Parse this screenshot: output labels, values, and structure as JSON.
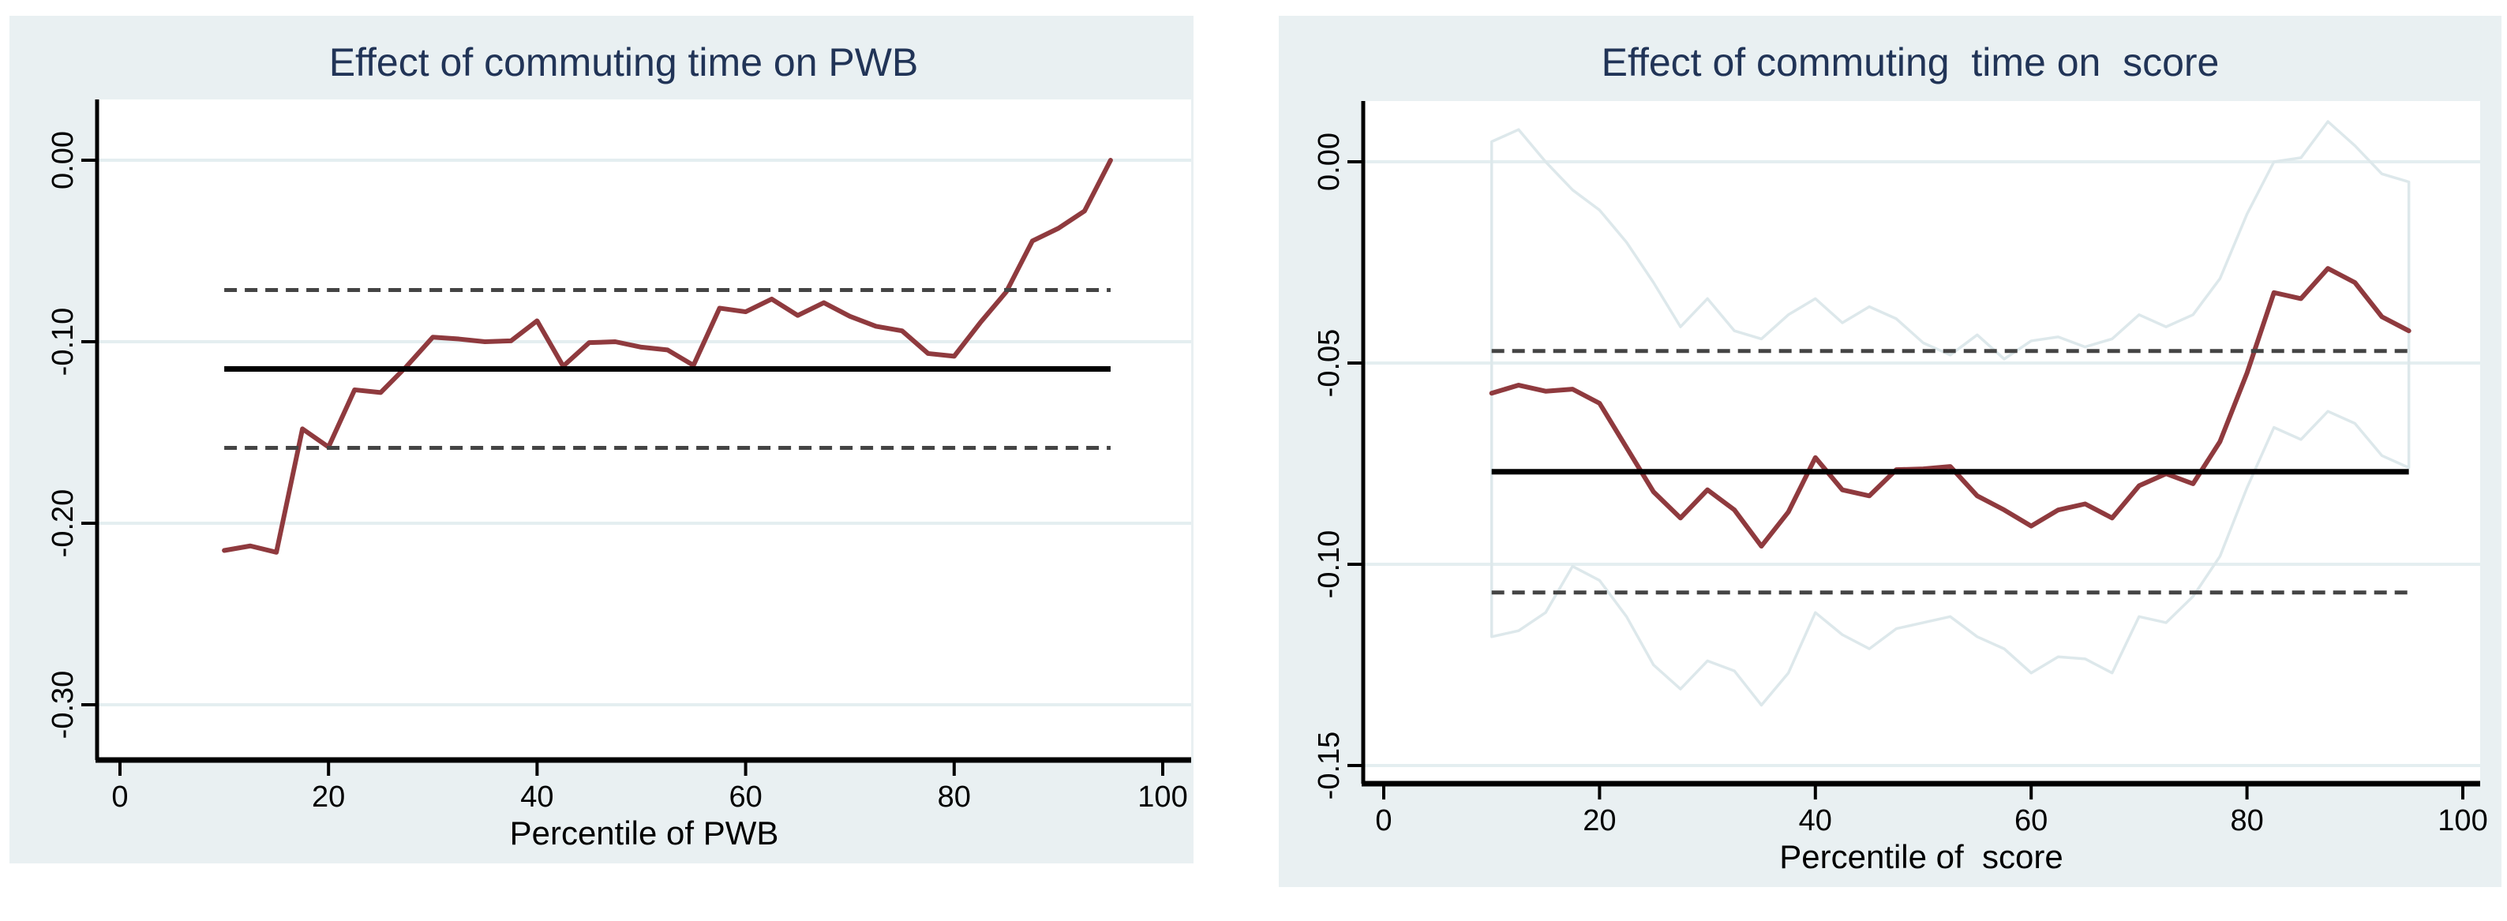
{
  "colors": {
    "panel_bg": "#e9f0f2",
    "plot_bg": "#ffffff",
    "grid": "#e4eef0",
    "title": "#213457",
    "effect_line": "#8f3a3e",
    "mean_line": "#000000",
    "mean_ci_dashed": "#444444",
    "quantile_ci_band": "#dde8eb",
    "axis": "#000000"
  },
  "chart_data": [
    {
      "type": "line",
      "title": "Effect of commuting time on PWB",
      "xlabel": "Percentile of PWB",
      "ylabel": "",
      "legend": "none",
      "grid": "on",
      "xlim": [
        0,
        100
      ],
      "ylim": [
        -0.33,
        0.034
      ],
      "xticks": [
        0,
        20,
        40,
        60,
        80,
        100
      ],
      "xtick_labels": [
        "0",
        "20",
        "40",
        "60",
        "80",
        "100"
      ],
      "ytick_values": [
        0,
        -0.1,
        -0.2,
        -0.3
      ],
      "ytick_labels": [
        "0.00",
        "-0.10",
        "-0.20",
        "-0.30"
      ],
      "x": [
        10,
        12.5,
        15,
        17.5,
        20,
        22.5,
        25,
        27.5,
        30,
        32.5,
        35,
        37.5,
        40,
        42.5,
        45,
        47.5,
        50,
        52.5,
        55,
        57.5,
        60,
        62.5,
        65,
        67.5,
        70,
        72.5,
        75,
        77.5,
        80,
        82.5,
        85,
        87.5,
        90,
        92.5,
        95
      ],
      "series": [
        {
          "name": "quantile effect of commuting time",
          "color": "#8f3a3e",
          "style": "solid",
          "values": [
            -0.215,
            -0.2125,
            -0.216,
            -0.148,
            -0.158,
            -0.1265,
            -0.128,
            -0.1135,
            -0.0975,
            -0.0985,
            -0.1,
            -0.0995,
            -0.0885,
            -0.1135,
            -0.1005,
            -0.1,
            -0.103,
            -0.1045,
            -0.113,
            -0.0815,
            -0.0835,
            -0.0765,
            -0.0855,
            -0.0785,
            -0.086,
            -0.0915,
            -0.094,
            -0.1065,
            -0.108,
            -0.0895,
            -0.0725,
            -0.0445,
            -0.0375,
            -0.028,
            0.0
          ]
        }
      ],
      "ref_lines": [
        {
          "name": "mean effect",
          "style": "solid",
          "color": "#000000",
          "value": -0.115,
          "span": [
            10,
            95
          ]
        },
        {
          "name": "mean effect upper 95% CI",
          "style": "dashed",
          "color": "#444444",
          "value": -0.0715,
          "span": [
            10,
            95
          ]
        },
        {
          "name": "mean effect lower 95% CI",
          "style": "dashed",
          "color": "#444444",
          "value": -0.1585,
          "span": [
            10,
            95
          ]
        }
      ]
    },
    {
      "type": "line",
      "title": "Effect of commuting  time on  score",
      "xlabel": "Percentile of  score",
      "ylabel": "",
      "legend": "none",
      "grid": "on",
      "xlim": [
        0,
        100
      ],
      "ylim": [
        -0.1545,
        0.015
      ],
      "xticks": [
        0,
        20,
        40,
        60,
        80,
        100
      ],
      "xtick_labels": [
        "0",
        "20",
        "40",
        "60",
        "80",
        "100"
      ],
      "ytick_values": [
        0,
        -0.05,
        -0.1,
        -0.15
      ],
      "ytick_labels": [
        "0.00",
        "-0.05",
        "-0.10",
        "-0.15"
      ],
      "x": [
        10,
        12.5,
        15,
        17.5,
        20,
        22.5,
        25,
        27.5,
        30,
        32.5,
        35,
        37.5,
        40,
        42.5,
        45,
        47.5,
        50,
        52.5,
        55,
        57.5,
        60,
        62.5,
        65,
        67.5,
        70,
        72.5,
        75,
        77.5,
        80,
        82.5,
        85,
        87.5,
        90,
        92.5,
        95
      ],
      "series": [
        {
          "name": "quantile effect of commuting time",
          "color": "#8f3a3e",
          "style": "solid",
          "values": [
            -0.0575,
            -0.0555,
            -0.057,
            -0.0565,
            -0.06,
            -0.071,
            -0.082,
            -0.0885,
            -0.0815,
            -0.0865,
            -0.0955,
            -0.087,
            -0.0735,
            -0.0815,
            -0.083,
            -0.0765,
            -0.0763,
            -0.0757,
            -0.083,
            -0.0865,
            -0.0905,
            -0.0865,
            -0.085,
            -0.0885,
            -0.0805,
            -0.0775,
            -0.08,
            -0.0695,
            -0.0525,
            -0.0325,
            -0.034,
            -0.0265,
            -0.03,
            -0.0385,
            -0.042
          ]
        },
        {
          "name": "quantile effect confidence band upper",
          "color": "#dde8eb",
          "style": "solid",
          "values": [
            0.005,
            0.008,
            0.0,
            -0.007,
            -0.012,
            -0.02,
            -0.03,
            -0.041,
            -0.034,
            -0.042,
            -0.044,
            -0.038,
            -0.034,
            -0.04,
            -0.036,
            -0.039,
            -0.045,
            -0.048,
            -0.043,
            -0.049,
            -0.0445,
            -0.0435,
            -0.046,
            -0.044,
            -0.038,
            -0.041,
            -0.038,
            -0.029,
            -0.013,
            0.0,
            0.001,
            0.01,
            0.004,
            -0.003,
            -0.005
          ]
        },
        {
          "name": "quantile effect confidence band lower",
          "color": "#dde8eb",
          "style": "solid",
          "values": [
            -0.118,
            -0.1165,
            -0.112,
            -0.1005,
            -0.104,
            -0.113,
            -0.125,
            -0.131,
            -0.124,
            -0.1265,
            -0.135,
            -0.127,
            -0.112,
            -0.1175,
            -0.121,
            -0.116,
            -0.1145,
            -0.113,
            -0.118,
            -0.121,
            -0.127,
            -0.123,
            -0.1235,
            -0.127,
            -0.113,
            -0.1145,
            -0.108,
            -0.098,
            -0.081,
            -0.066,
            -0.069,
            -0.062,
            -0.065,
            -0.073,
            -0.076
          ]
        }
      ],
      "ref_lines": [
        {
          "name": "mean effect",
          "style": "solid",
          "color": "#000000",
          "value": -0.077,
          "span": [
            10,
            95
          ]
        },
        {
          "name": "mean effect upper 95% CI",
          "style": "dashed",
          "color": "#444444",
          "value": -0.047,
          "span": [
            10,
            95
          ]
        },
        {
          "name": "mean effect lower 95% CI",
          "style": "dashed",
          "color": "#444444",
          "value": -0.107,
          "span": [
            10,
            95
          ]
        }
      ]
    }
  ]
}
